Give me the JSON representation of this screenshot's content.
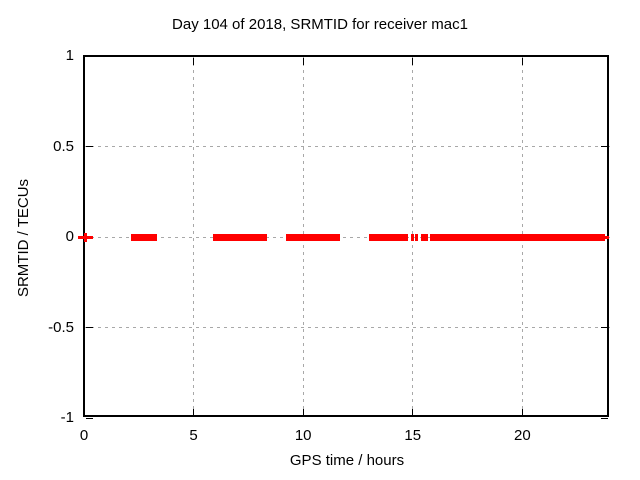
{
  "chart_data": {
    "type": "scatter",
    "title": "Day 104 of 2018, SRMTID for receiver mac1",
    "xlabel": "GPS time / hours",
    "ylabel": "SRMTID / TECUs",
    "xlim": [
      0,
      24
    ],
    "ylim": [
      -1,
      1
    ],
    "grid": true,
    "legend_position": "none",
    "colors": {
      "series": "#ff0000",
      "grid": "#a8a8a8",
      "axis": "#000000",
      "background": "#ffffff"
    },
    "xticks": [
      {
        "value": 0,
        "label": "0"
      },
      {
        "value": 5,
        "label": "5"
      },
      {
        "value": 10,
        "label": "10"
      },
      {
        "value": 15,
        "label": "15"
      },
      {
        "value": 20,
        "label": "20"
      }
    ],
    "yticks": [
      {
        "value": 1,
        "label": "1"
      },
      {
        "value": 0.5,
        "label": "0.5"
      },
      {
        "value": 0,
        "label": "0"
      },
      {
        "value": -0.5,
        "label": "-0.5"
      },
      {
        "value": -1,
        "label": "-1"
      }
    ],
    "series": [
      {
        "name": "SRMTID",
        "color": "#ff0000",
        "y_value": 0,
        "marker": "filled-square-band",
        "isolated_points": [
          {
            "x": 0.05,
            "y": 0,
            "marker": "plus"
          }
        ],
        "segments_hours": [
          [
            2.15,
            3.35
          ],
          [
            5.9,
            8.35
          ],
          [
            9.2,
            11.7
          ],
          [
            13.0,
            14.78
          ],
          [
            14.9,
            15.05
          ],
          [
            15.12,
            15.26
          ],
          [
            15.36,
            15.7
          ],
          [
            15.8,
            23.78
          ]
        ],
        "thin_tail_hours": [
          23.78,
          23.95
        ]
      }
    ]
  }
}
